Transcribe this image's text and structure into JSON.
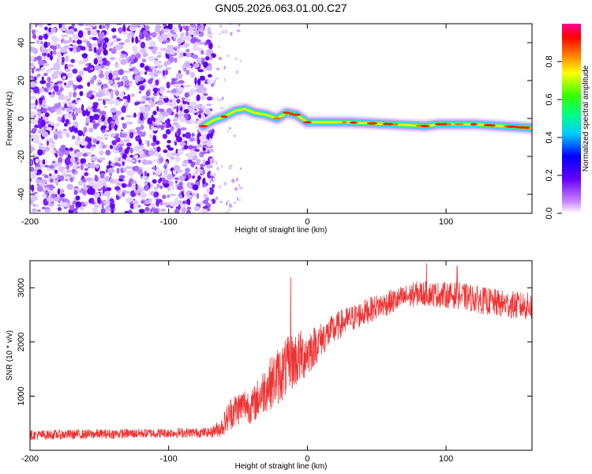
{
  "title": "GN05.2026.063.01.00.C27",
  "chart_data": [
    {
      "type": "heatmap",
      "name": "spectrogram",
      "xlabel": "Height of straight line (km)",
      "ylabel": "Frequency (Hz)",
      "xlim": [
        -200,
        162
      ],
      "ylim": [
        -50,
        50
      ],
      "xticks": [
        -200,
        -100,
        0,
        100
      ],
      "yticks": [
        -40,
        -20,
        0,
        20,
        40
      ],
      "colorbar": {
        "label": "Normalized spectral amplitude",
        "range": [
          0,
          1
        ],
        "ticks": [
          0.0,
          0.2,
          0.4,
          0.6,
          0.8
        ],
        "tick_labels": [
          "0.0",
          "0.2",
          "0.4",
          "0.6",
          "0.8"
        ]
      },
      "noise_region_x": [
        -200,
        -70
      ],
      "signal_track": [
        {
          "x": -75,
          "y": -4
        },
        {
          "x": -68,
          "y": -1
        },
        {
          "x": -60,
          "y": 1
        },
        {
          "x": -52,
          "y": 4
        },
        {
          "x": -45,
          "y": 5
        },
        {
          "x": -38,
          "y": 3
        },
        {
          "x": -30,
          "y": 2
        },
        {
          "x": -22,
          "y": 0
        },
        {
          "x": -15,
          "y": 3
        },
        {
          "x": -8,
          "y": 2
        },
        {
          "x": 0,
          "y": -2
        },
        {
          "x": 10,
          "y": -2
        },
        {
          "x": 30,
          "y": -2
        },
        {
          "x": 60,
          "y": -3
        },
        {
          "x": 85,
          "y": -4
        },
        {
          "x": 95,
          "y": -3
        },
        {
          "x": 120,
          "y": -3
        },
        {
          "x": 140,
          "y": -4
        },
        {
          "x": 162,
          "y": -5
        }
      ]
    },
    {
      "type": "line",
      "name": "snr",
      "xlabel": "Height of straight line (km)",
      "ylabel": "SNR (10 * v/v)",
      "xlim": [
        -200,
        162
      ],
      "ylim": [
        0,
        3500
      ],
      "xticks": [
        -200,
        -100,
        0,
        100
      ],
      "yticks": [
        1000,
        2000,
        3000
      ],
      "series": [
        {
          "name": "SNR",
          "color": "#ee3333",
          "envelope": [
            {
              "x": -200,
              "mean": 280,
              "noise": 90
            },
            {
              "x": -150,
              "mean": 300,
              "noise": 90
            },
            {
              "x": -100,
              "mean": 320,
              "noise": 90
            },
            {
              "x": -70,
              "mean": 330,
              "noise": 90
            },
            {
              "x": -62,
              "mean": 420,
              "noise": 180
            },
            {
              "x": -55,
              "mean": 700,
              "noise": 320
            },
            {
              "x": -45,
              "mean": 850,
              "noise": 320
            },
            {
              "x": -40,
              "mean": 800,
              "noise": 320
            },
            {
              "x": -30,
              "mean": 1150,
              "noise": 450
            },
            {
              "x": -20,
              "mean": 1400,
              "noise": 550
            },
            {
              "x": -10,
              "mean": 1650,
              "noise": 550
            },
            {
              "x": 0,
              "mean": 1800,
              "noise": 450
            },
            {
              "x": 10,
              "mean": 2050,
              "noise": 320
            },
            {
              "x": 25,
              "mean": 2350,
              "noise": 260
            },
            {
              "x": 50,
              "mean": 2650,
              "noise": 230
            },
            {
              "x": 80,
              "mean": 2900,
              "noise": 230
            },
            {
              "x": 110,
              "mean": 2850,
              "noise": 250
            },
            {
              "x": 140,
              "mean": 2700,
              "noise": 260
            },
            {
              "x": 162,
              "mean": 2650,
              "noise": 260
            }
          ],
          "peaks": [
            {
              "x": -12,
              "y": 3200
            },
            {
              "x": 86,
              "y": 3450
            },
            {
              "x": 108,
              "y": 3400
            }
          ]
        }
      ]
    }
  ]
}
